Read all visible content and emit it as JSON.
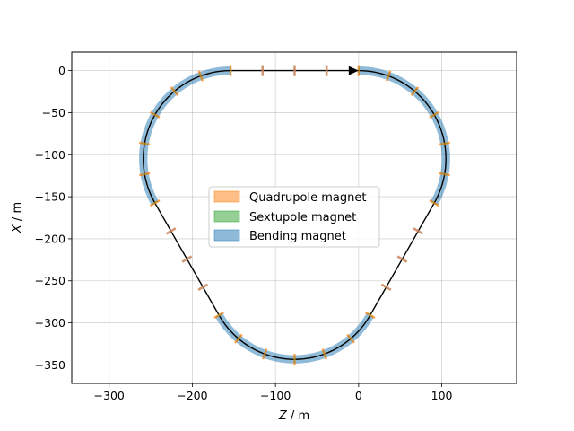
{
  "chart_data": {
    "type": "lattice-layout",
    "title": "",
    "xlabel_var": "Z",
    "xlabel_unit": " / m",
    "ylabel_var": "X",
    "ylabel_unit": " / m",
    "xlim": [
      -345,
      190
    ],
    "ylim": [
      -372,
      22
    ],
    "xticks": [
      -300,
      -200,
      -100,
      0,
      100
    ],
    "xtick_labels": [
      "−300",
      "−200",
      "−100",
      "0",
      "100"
    ],
    "yticks": [
      0,
      -50,
      -100,
      -150,
      -200,
      -250,
      -300,
      -350
    ],
    "ytick_labels": [
      "0",
      "−50",
      "−100",
      "−150",
      "−200",
      "−250",
      "−300",
      "−350"
    ],
    "grid": true,
    "legend_position": "center",
    "legend": [
      {
        "label": "Quadrupole magnet",
        "color": "#ff7f0e"
      },
      {
        "label": "Sextupole magnet",
        "color": "#2ca02c"
      },
      {
        "label": "Bending magnet",
        "color": "#1f77b4"
      }
    ],
    "ring": {
      "arc_radius": 105,
      "arc_span_deg": 120,
      "straight_length": 154,
      "start_point": [
        0,
        0
      ],
      "magnet_band_width": 10,
      "arc_centers": [
        [
          0,
          -105
        ],
        [
          -154,
          -105
        ],
        [
          -77,
          -238.4
        ]
      ]
    },
    "arc_quadrupoles_deg": [
      [
        0,
        20,
        40,
        60,
        80,
        100,
        120
      ],
      [
        0,
        20,
        40,
        60,
        80,
        100,
        120
      ],
      [
        0,
        20,
        40,
        60,
        80,
        100,
        120
      ]
    ],
    "straight_quadrupole_fractions": [
      0.25,
      0.5,
      0.75
    ],
    "direction_arrow": {
      "from": [
        -40,
        0
      ],
      "to": [
        0,
        0
      ]
    }
  }
}
